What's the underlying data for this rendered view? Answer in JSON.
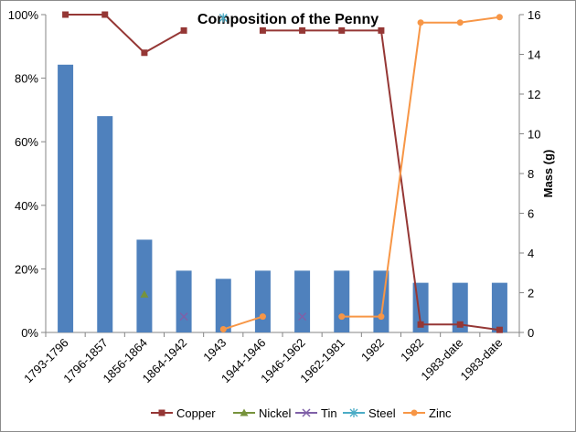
{
  "chart_data": {
    "type": "bar+line",
    "title": "Composition of the Penny",
    "ylabel_right": "Mass (g)",
    "categories": [
      "1793-1796",
      "1796-1857",
      "1856-1864",
      "1864-1942",
      "1943",
      "1944-1946",
      "1946-1962",
      "1962-1981",
      "1982",
      "1982",
      "1983-date",
      "1983-date"
    ],
    "left_axis": {
      "min": 0,
      "max": 1.0,
      "ticks": [
        "0%",
        "20%",
        "40%",
        "60%",
        "80%",
        "100%"
      ]
    },
    "right_axis": {
      "min": 0,
      "max": 16,
      "ticks": [
        "0",
        "2",
        "4",
        "6",
        "8",
        "10",
        "12",
        "14",
        "16"
      ]
    },
    "bars": {
      "name": "Mass (g)",
      "axis": "right",
      "color": "#4f81bd",
      "values": [
        13.48,
        10.89,
        4.67,
        3.11,
        2.7,
        3.11,
        3.11,
        3.11,
        3.11,
        2.5,
        2.5,
        2.5
      ]
    },
    "series": [
      {
        "name": "Copper",
        "color": "#953735",
        "marker": "square",
        "values": [
          1.0,
          1.0,
          0.88,
          0.95,
          null,
          0.95,
          0.95,
          0.95,
          0.95,
          0.025,
          0.025,
          0.008
        ]
      },
      {
        "name": "Nickel",
        "color": "#77933c",
        "marker": "triangle",
        "values": [
          null,
          null,
          0.12,
          null,
          null,
          null,
          null,
          null,
          null,
          null,
          null,
          null
        ]
      },
      {
        "name": "Tin",
        "color": "#7f60a8",
        "marker": "x",
        "values": [
          null,
          null,
          null,
          0.05,
          null,
          null,
          0.05,
          null,
          null,
          null,
          null,
          null
        ]
      },
      {
        "name": "Steel",
        "color": "#4bacc6",
        "marker": "star",
        "values": [
          null,
          null,
          null,
          null,
          0.99,
          null,
          null,
          null,
          null,
          null,
          null,
          null
        ]
      },
      {
        "name": "Zinc",
        "color": "#f79646",
        "marker": "circle",
        "values": [
          null,
          null,
          null,
          null,
          0.01,
          0.05,
          null,
          0.05,
          0.05,
          0.975,
          0.975,
          0.992
        ]
      }
    ],
    "legend": "bottom",
    "grid": false
  }
}
